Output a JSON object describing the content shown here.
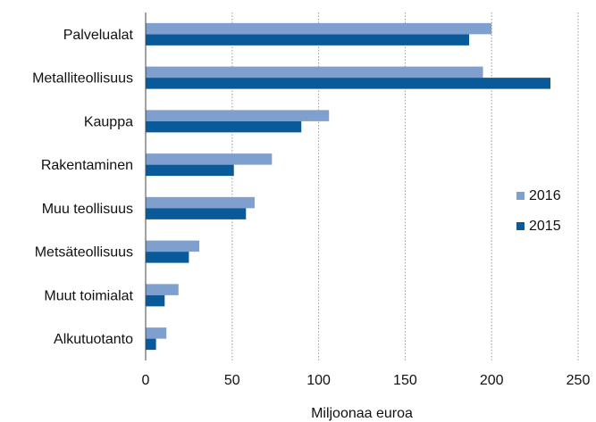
{
  "chart_data": {
    "type": "bar",
    "orientation": "horizontal",
    "categories": [
      "Palvelualat",
      "Metalliteollisuus",
      "Kauppa",
      "Rakentaminen",
      "Muu teollisuus",
      "Metsäteollisuus",
      "Muut toimialat",
      "Alkutuotanto"
    ],
    "series": [
      {
        "name": "2016",
        "color": "#7f9fcf",
        "values": [
          200,
          195,
          106,
          73,
          63,
          31,
          19,
          12
        ]
      },
      {
        "name": "2015",
        "color": "#0a5a9a",
        "values": [
          187,
          234,
          90,
          51,
          58,
          25,
          11,
          6
        ]
      }
    ],
    "xlabel": "Miljoonaa euroa",
    "ylabel": "",
    "xlim": [
      0,
      250
    ],
    "xticks": [
      0,
      50,
      100,
      150,
      200,
      250
    ],
    "grid": "vertical",
    "legend_position": "right"
  }
}
